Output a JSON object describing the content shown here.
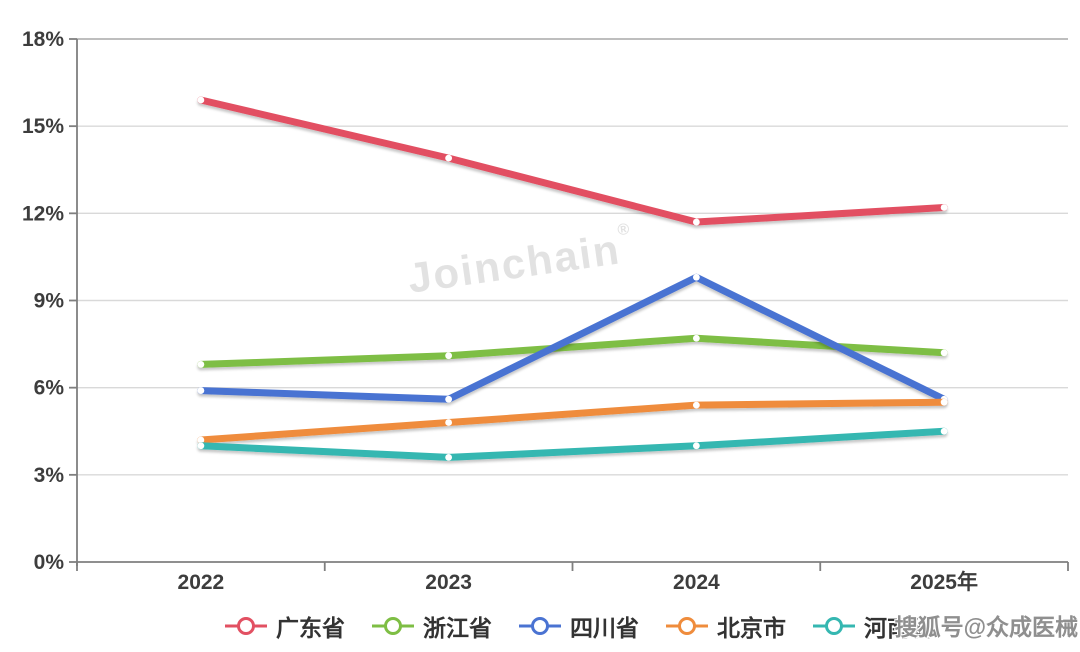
{
  "page": {
    "watermark_center": "Joinchain",
    "watermark_center_reg": "®",
    "watermark_bottom_right": "搜狐号@众成医械"
  },
  "chart_data": {
    "type": "line",
    "categories": [
      "2022",
      "2023",
      "2024",
      "2025年"
    ],
    "series": [
      {
        "name": "广东省",
        "color": "#e25062",
        "values": [
          15.9,
          13.9,
          11.7,
          12.2
        ]
      },
      {
        "name": "浙江省",
        "color": "#7ebe44",
        "values": [
          6.8,
          7.1,
          7.7,
          7.2
        ]
      },
      {
        "name": "四川省",
        "color": "#4a73d2",
        "values": [
          5.9,
          5.6,
          9.8,
          5.6
        ]
      },
      {
        "name": "北京市",
        "color": "#ef8c3c",
        "values": [
          4.2,
          4.8,
          5.4,
          5.5
        ]
      },
      {
        "name": "河南省",
        "color": "#35b7b1",
        "values": [
          4.0,
          3.6,
          4.0,
          4.5
        ]
      }
    ],
    "title": "",
    "xlabel": "",
    "ylabel": "",
    "ylim": [
      0,
      18
    ],
    "ytick_step": 3,
    "ytick_labels": [
      "0%",
      "3%",
      "6%",
      "9%",
      "12%",
      "15%",
      "18%"
    ],
    "grid": true,
    "legend_position": "bottom",
    "colors": {
      "axis": "#7f7f7f",
      "grid": "#d9d9d9",
      "grid_top": "#b5b5b5",
      "tick_text": "#3d3d3d"
    }
  }
}
